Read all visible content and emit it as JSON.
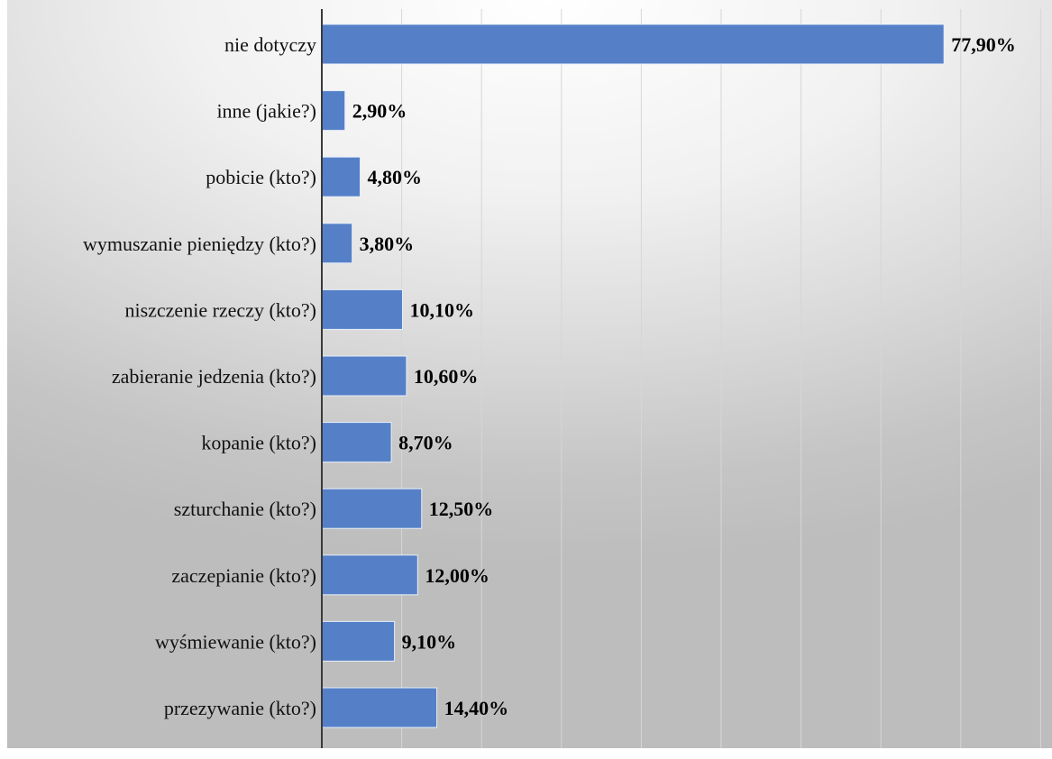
{
  "chart_data": {
    "type": "bar",
    "orientation": "horizontal",
    "categories": [
      "nie dotyczy",
      "inne (jakie?)",
      "pobicie (kto?)",
      "wymuszanie pieniędzy (kto?)",
      "niszczenie rzeczy (kto?)",
      "zabieranie jedzenia (kto?)",
      "kopanie (kto?)",
      "szturchanie (kto?)",
      "zaczepianie (kto?)",
      "wyśmiewanie (kto?)",
      "przezywanie (kto?)"
    ],
    "values": [
      77.9,
      2.9,
      4.8,
      3.8,
      10.1,
      10.6,
      8.7,
      12.5,
      12.0,
      9.1,
      14.4
    ],
    "value_labels": [
      "77,90%",
      "2,90%",
      "4,80%",
      "3,80%",
      "10,10%",
      "10,60%",
      "8,70%",
      "12,50%",
      "12,00%",
      "9,10%",
      "14,40%"
    ],
    "xlim": [
      0,
      90
    ],
    "grid": true,
    "bar_color": "#5580c8"
  }
}
